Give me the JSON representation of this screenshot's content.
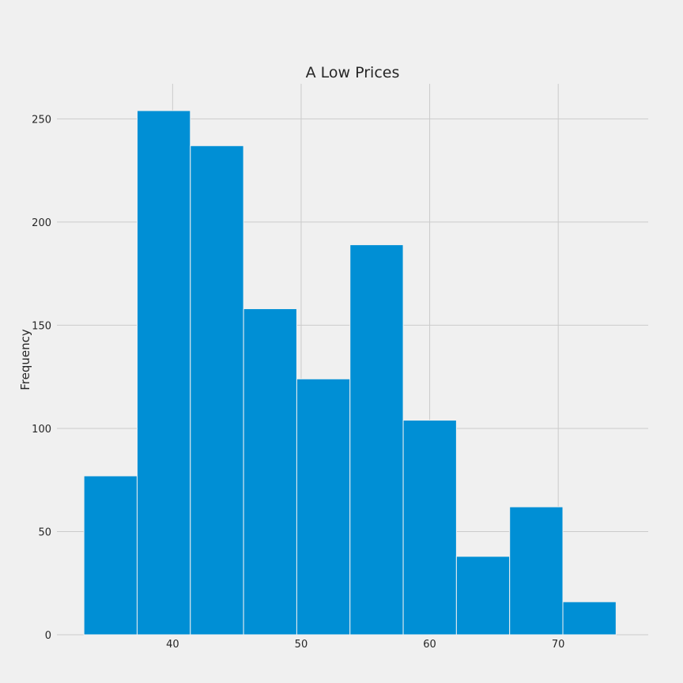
{
  "chart_data": {
    "type": "bar",
    "title": "A Low Prices",
    "xlabel": "",
    "ylabel": "Frequency",
    "bins": [
      {
        "x0": 33.1,
        "x1": 37.24,
        "count": 77
      },
      {
        "x0": 37.24,
        "x1": 41.38,
        "count": 254
      },
      {
        "x0": 41.38,
        "x1": 45.52,
        "count": 237
      },
      {
        "x0": 45.52,
        "x1": 49.66,
        "count": 158
      },
      {
        "x0": 49.66,
        "x1": 53.8,
        "count": 124
      },
      {
        "x0": 53.8,
        "x1": 57.94,
        "count": 189
      },
      {
        "x0": 57.94,
        "x1": 62.08,
        "count": 104
      },
      {
        "x0": 62.08,
        "x1": 66.22,
        "count": 38
      },
      {
        "x0": 66.22,
        "x1": 70.36,
        "count": 62
      },
      {
        "x0": 70.36,
        "x1": 74.5,
        "count": 16
      }
    ],
    "xlim": [
      31.0,
      77.0
    ],
    "ylim": [
      0,
      267
    ],
    "xticks": [
      40,
      50,
      60,
      70
    ],
    "yticks": [
      0,
      50,
      100,
      150,
      200,
      250
    ],
    "grid": true,
    "bar_color": "#008fd5",
    "background": "#f0f0f0"
  }
}
